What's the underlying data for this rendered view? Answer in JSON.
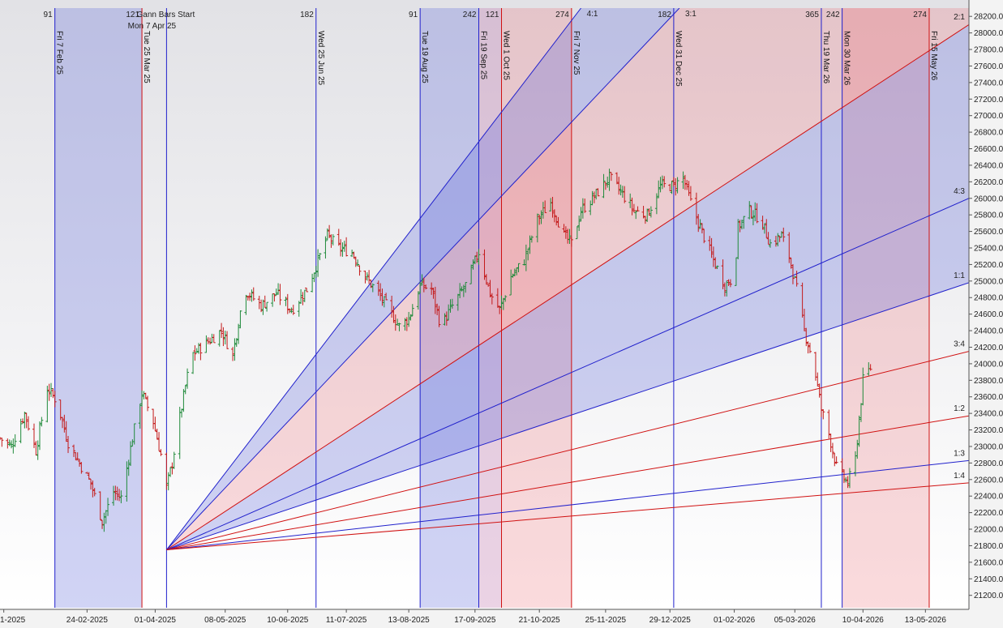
{
  "chart_data": {
    "type": "ohlc",
    "title": "",
    "xlabel": "",
    "ylabel": "",
    "ylim": [
      21050,
      28300
    ],
    "y_tick_step": 200,
    "x_range": [
      "2025-01-09",
      "2026-06-05"
    ],
    "x_tick_labels": [
      {
        "date": "2025-01-11",
        "label": "1-2025"
      },
      {
        "date": "2025-02-24",
        "label": "24-02-2025"
      },
      {
        "date": "2025-04-01",
        "label": "01-04-2025"
      },
      {
        "date": "2025-05-08",
        "label": "08-05-2025"
      },
      {
        "date": "2025-06-10",
        "label": "10-06-2025"
      },
      {
        "date": "2025-07-11",
        "label": "11-07-2025"
      },
      {
        "date": "2025-08-13",
        "label": "13-08-2025"
      },
      {
        "date": "2025-09-17",
        "label": "17-09-2025"
      },
      {
        "date": "2025-10-21",
        "label": "21-10-2025"
      },
      {
        "date": "2025-11-25",
        "label": "25-11-2025"
      },
      {
        "date": "2025-12-29",
        "label": "29-12-2025"
      },
      {
        "date": "2026-02-01",
        "label": "01-02-2026"
      },
      {
        "date": "2026-03-05",
        "label": "05-03-2026"
      },
      {
        "date": "2026-04-10",
        "label": "10-04-2026"
      },
      {
        "date": "2026-05-13",
        "label": "13-05-2026"
      }
    ],
    "gann_bars_start": {
      "label": "Gann Bars Start",
      "date_label": "Mon 7 Apr 25",
      "date": "2025-04-07"
    },
    "vertical_lines": [
      {
        "date": "2025-02-07",
        "label": "Fri 7 Feb 25",
        "top_label": "91",
        "color": "#2020cc"
      },
      {
        "date": "2025-03-25",
        "label": "Tue 25 Mar 25",
        "top_label": "121",
        "color": "#d01010"
      },
      {
        "date": "2025-04-07",
        "label": "",
        "top_label": "",
        "color": "#2020cc"
      },
      {
        "date": "2025-06-25",
        "label": "Wed 25 Jun 25",
        "top_label": "182",
        "color": "#2020cc"
      },
      {
        "date": "2025-08-19",
        "label": "Tue 19 Aug 25",
        "top_label": "91",
        "color": "#2020cc"
      },
      {
        "date": "2025-09-19",
        "label": "Fri 19 Sep 25",
        "top_label": "242",
        "color": "#2020cc"
      },
      {
        "date": "2025-10-01",
        "label": "Wed 1 Oct 25",
        "top_label": "121",
        "color": "#d01010"
      },
      {
        "date": "2025-11-07",
        "label": "Fri 7 Nov 25",
        "top_label": "274",
        "color": "#d01010"
      },
      {
        "date": "2025-12-31",
        "label": "Wed 31 Dec 25",
        "top_label": "182",
        "color": "#2020cc"
      },
      {
        "date": "2026-03-19",
        "label": "Thu 19 Mar 26",
        "top_label": "365",
        "color": "#2020cc"
      },
      {
        "date": "2026-03-30",
        "label": "Mon 30 Mar 26",
        "top_label": "242",
        "color": "#2020cc"
      },
      {
        "date": "2026-05-15",
        "label": "Fri 15 May 26",
        "top_label": "274",
        "color": "#d01010"
      }
    ],
    "shaded_regions": [
      {
        "from": "2025-02-07",
        "to": "2025-03-25",
        "color": "blue"
      },
      {
        "from": "2025-08-19",
        "to": "2025-09-19",
        "color": "blue"
      },
      {
        "from": "2025-09-19",
        "to": "2025-10-01",
        "color": "mixed"
      },
      {
        "from": "2025-10-01",
        "to": "2025-11-07",
        "color": "red"
      },
      {
        "from": "2026-03-30",
        "to": "2026-05-15",
        "color": "red"
      }
    ],
    "gann_fan": {
      "origin": {
        "date": "2025-04-07",
        "price": 21750
      },
      "rays": [
        {
          "label": "4:1",
          "end": {
            "date": "2025-11-12",
            "price": 28300
          },
          "color": "#2020cc"
        },
        {
          "label": "3:1",
          "end": {
            "date": "2026-01-03",
            "price": 28300
          },
          "color": "#2020cc"
        },
        {
          "label": "2:1",
          "end": {
            "date": "2026-06-05",
            "price": 28100
          },
          "color": "#d01010"
        },
        {
          "label": "4:3",
          "end": {
            "date": "2026-06-05",
            "price": 26000
          },
          "color": "#2020cc"
        },
        {
          "label": "1:1",
          "end": {
            "date": "2026-06-05",
            "price": 24980
          },
          "color": "#2020cc"
        },
        {
          "label": "3:4",
          "end": {
            "date": "2026-06-05",
            "price": 24150
          },
          "color": "#d01010"
        },
        {
          "label": "1:2",
          "end": {
            "date": "2026-06-05",
            "price": 23370
          },
          "color": "#d01010"
        },
        {
          "label": "1:3",
          "end": {
            "date": "2026-06-05",
            "price": 22830
          },
          "color": "#2020cc"
        },
        {
          "label": "1:4",
          "end": {
            "date": "2026-06-05",
            "price": 22560
          },
          "color": "#d01010"
        }
      ],
      "fill_bands": [
        {
          "between": [
            "4:1",
            "3:1"
          ],
          "color": "blue"
        },
        {
          "between": [
            "3:1",
            "2:1"
          ],
          "color": "red"
        },
        {
          "between": [
            "2:1",
            "4:3"
          ],
          "color": "blue"
        },
        {
          "between": [
            "4:3",
            "1:1"
          ],
          "color": "blue"
        }
      ]
    },
    "price_anchors": [
      {
        "date": "2025-01-09",
        "price": 23100
      },
      {
        "date": "2025-01-15",
        "price": 23000
      },
      {
        "date": "2025-01-22",
        "price": 23400
      },
      {
        "date": "2025-01-28",
        "price": 22950
      },
      {
        "date": "2025-02-03",
        "price": 23700
      },
      {
        "date": "2025-02-08",
        "price": 23550
      },
      {
        "date": "2025-02-14",
        "price": 23050
      },
      {
        "date": "2025-02-20",
        "price": 22800
      },
      {
        "date": "2025-02-26",
        "price": 22550
      },
      {
        "date": "2025-03-04",
        "price": 22100
      },
      {
        "date": "2025-03-10",
        "price": 22450
      },
      {
        "date": "2025-03-14",
        "price": 22380
      },
      {
        "date": "2025-03-20",
        "price": 23100
      },
      {
        "date": "2025-03-25",
        "price": 23650
      },
      {
        "date": "2025-03-31",
        "price": 23300
      },
      {
        "date": "2025-04-04",
        "price": 22900
      },
      {
        "date": "2025-04-07",
        "price": 22500
      },
      {
        "date": "2025-04-10",
        "price": 22800
      },
      {
        "date": "2025-04-14",
        "price": 23350
      },
      {
        "date": "2025-04-20",
        "price": 24100
      },
      {
        "date": "2025-04-28",
        "price": 24250
      },
      {
        "date": "2025-05-06",
        "price": 24400
      },
      {
        "date": "2025-05-12",
        "price": 24100
      },
      {
        "date": "2025-05-18",
        "price": 24900
      },
      {
        "date": "2025-05-27",
        "price": 24700
      },
      {
        "date": "2025-06-04",
        "price": 24850
      },
      {
        "date": "2025-06-12",
        "price": 24650
      },
      {
        "date": "2025-06-20",
        "price": 24900
      },
      {
        "date": "2025-06-27",
        "price": 25300
      },
      {
        "date": "2025-07-01",
        "price": 25550
      },
      {
        "date": "2025-07-07",
        "price": 25400
      },
      {
        "date": "2025-07-14",
        "price": 25350
      },
      {
        "date": "2025-07-21",
        "price": 25050
      },
      {
        "date": "2025-07-28",
        "price": 24850
      },
      {
        "date": "2025-08-04",
        "price": 24600
      },
      {
        "date": "2025-08-08",
        "price": 24450
      },
      {
        "date": "2025-08-13",
        "price": 24550
      },
      {
        "date": "2025-08-19",
        "price": 24950
      },
      {
        "date": "2025-08-25",
        "price": 24900
      },
      {
        "date": "2025-08-30",
        "price": 24450
      },
      {
        "date": "2025-09-05",
        "price": 24700
      },
      {
        "date": "2025-09-12",
        "price": 24950
      },
      {
        "date": "2025-09-19",
        "price": 25350
      },
      {
        "date": "2025-09-25",
        "price": 24850
      },
      {
        "date": "2025-09-30",
        "price": 24650
      },
      {
        "date": "2025-10-06",
        "price": 25050
      },
      {
        "date": "2025-10-13",
        "price": 25250
      },
      {
        "date": "2025-10-20",
        "price": 25750
      },
      {
        "date": "2025-10-27",
        "price": 25950
      },
      {
        "date": "2025-11-03",
        "price": 25550
      },
      {
        "date": "2025-11-07",
        "price": 25450
      },
      {
        "date": "2025-11-12",
        "price": 25850
      },
      {
        "date": "2025-11-20",
        "price": 26050
      },
      {
        "date": "2025-11-27",
        "price": 26250
      },
      {
        "date": "2025-12-04",
        "price": 26050
      },
      {
        "date": "2025-12-10",
        "price": 25850
      },
      {
        "date": "2025-12-17",
        "price": 25800
      },
      {
        "date": "2025-12-24",
        "price": 26150
      },
      {
        "date": "2025-12-31",
        "price": 26150
      },
      {
        "date": "2026-01-05",
        "price": 26250
      },
      {
        "date": "2026-01-09",
        "price": 25950
      },
      {
        "date": "2026-01-14",
        "price": 25650
      },
      {
        "date": "2026-01-21",
        "price": 25250
      },
      {
        "date": "2026-01-27",
        "price": 24950
      },
      {
        "date": "2026-02-01",
        "price": 25050
      },
      {
        "date": "2026-02-03",
        "price": 25650
      },
      {
        "date": "2026-02-09",
        "price": 25850
      },
      {
        "date": "2026-02-15",
        "price": 25750
      },
      {
        "date": "2026-02-20",
        "price": 25450
      },
      {
        "date": "2026-02-26",
        "price": 25550
      },
      {
        "date": "2026-03-02",
        "price": 25300
      },
      {
        "date": "2026-03-06",
        "price": 24900
      },
      {
        "date": "2026-03-10",
        "price": 24400
      },
      {
        "date": "2026-03-15",
        "price": 24000
      },
      {
        "date": "2026-03-19",
        "price": 23450
      },
      {
        "date": "2026-03-23",
        "price": 23150
      },
      {
        "date": "2026-03-27",
        "price": 22750
      },
      {
        "date": "2026-04-02",
        "price": 22550
      },
      {
        "date": "2026-04-06",
        "price": 22850
      },
      {
        "date": "2026-04-10",
        "price": 23800
      },
      {
        "date": "2026-04-14",
        "price": 23950
      }
    ]
  }
}
